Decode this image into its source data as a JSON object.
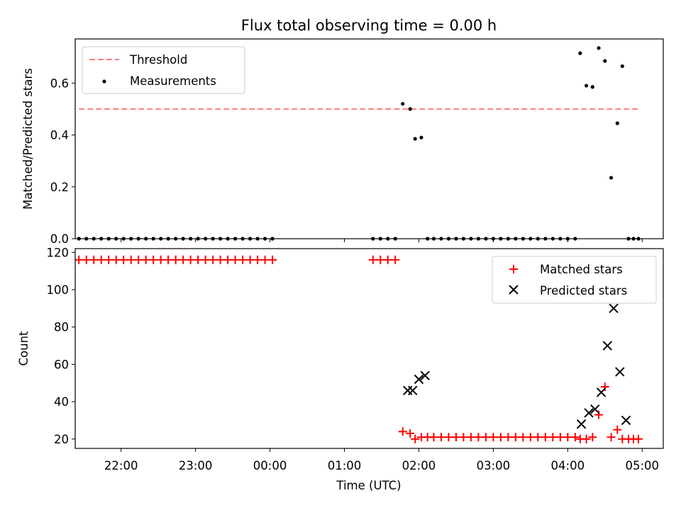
{
  "chart_data": [
    {
      "type": "scatter",
      "title": "Flux total observing time = 0.00 h",
      "ylabel": "Matched/Predicted stars",
      "xlabel": "",
      "ylim": [
        0,
        0.77
      ],
      "yticks": [
        "0.0",
        "0.2",
        "0.4",
        "0.6"
      ],
      "ytick_values": [
        0,
        0.2,
        0.4,
        0.6
      ],
      "legend_position": "top-left",
      "threshold": {
        "name": "Threshold",
        "value": 0.5,
        "x_start": "21:26",
        "x_end": "04:57",
        "color": "#ff7f7f"
      },
      "series": [
        {
          "name": "Measurements",
          "color": "#000000",
          "marker": "dot",
          "x": [
            "21:26",
            "21:32",
            "21:38",
            "21:44",
            "21:50",
            "21:56",
            "22:02",
            "22:08",
            "22:14",
            "22:20",
            "22:26",
            "22:32",
            "22:38",
            "22:44",
            "22:50",
            "22:56",
            "23:02",
            "23:08",
            "23:14",
            "23:20",
            "23:26",
            "23:32",
            "23:38",
            "23:44",
            "23:50",
            "23:56",
            "00:02",
            "01:23",
            "01:29",
            "01:35",
            "01:41",
            "01:47",
            "01:53",
            "01:57",
            "02:02",
            "02:07",
            "02:12",
            "02:18",
            "02:24",
            "02:30",
            "02:36",
            "02:42",
            "02:48",
            "02:54",
            "03:00",
            "03:06",
            "03:12",
            "03:18",
            "03:24",
            "03:30",
            "03:36",
            "03:42",
            "03:48",
            "03:54",
            "04:00",
            "04:06",
            "04:10",
            "04:15",
            "04:20",
            "04:25",
            "04:30",
            "04:35",
            "04:40",
            "04:44",
            "04:49",
            "04:53",
            "04:57"
          ],
          "y": [
            0,
            0,
            0,
            0,
            0,
            0,
            0,
            0,
            0,
            0,
            0,
            0,
            0,
            0,
            0,
            0,
            0,
            0,
            0,
            0,
            0,
            0,
            0,
            0,
            0,
            0,
            0,
            0,
            0,
            0,
            0,
            0.52,
            0.5,
            0.385,
            0.39,
            0,
            0,
            0,
            0,
            0,
            0,
            0,
            0,
            0,
            0,
            0,
            0,
            0,
            0,
            0,
            0,
            0,
            0,
            0,
            0,
            0,
            0.715,
            0.59,
            0.585,
            0.735,
            0.685,
            0.235,
            0.445,
            0.665,
            0,
            0,
            0
          ]
        }
      ]
    },
    {
      "type": "scatter",
      "title": "",
      "ylabel": "Count",
      "xlabel": "Time (UTC)",
      "ylim": [
        15,
        122
      ],
      "yticks": [
        "20",
        "40",
        "60",
        "80",
        "100",
        "120"
      ],
      "ytick_values": [
        20,
        40,
        60,
        80,
        100,
        120
      ],
      "xticks": [
        "22:00",
        "23:00",
        "00:00",
        "01:00",
        "02:00",
        "03:00",
        "04:00",
        "05:00"
      ],
      "xlim": [
        "21:23",
        "05:17"
      ],
      "legend_position": "top-right",
      "series": [
        {
          "name": "Matched stars",
          "color": "#ff0000",
          "marker": "plus",
          "x": [
            "21:26",
            "21:32",
            "21:38",
            "21:44",
            "21:50",
            "21:56",
            "22:02",
            "22:08",
            "22:14",
            "22:20",
            "22:26",
            "22:32",
            "22:38",
            "22:44",
            "22:50",
            "22:56",
            "23:02",
            "23:08",
            "23:14",
            "23:20",
            "23:26",
            "23:32",
            "23:38",
            "23:44",
            "23:50",
            "23:56",
            "00:02",
            "01:23",
            "01:29",
            "01:35",
            "01:41",
            "01:47",
            "01:53",
            "01:57",
            "02:02",
            "02:07",
            "02:12",
            "02:18",
            "02:24",
            "02:30",
            "02:36",
            "02:42",
            "02:48",
            "02:54",
            "03:00",
            "03:06",
            "03:12",
            "03:18",
            "03:24",
            "03:30",
            "03:36",
            "03:42",
            "03:48",
            "03:54",
            "04:00",
            "04:06",
            "04:10",
            "04:15",
            "04:20",
            "04:25",
            "04:30",
            "04:35",
            "04:40",
            "04:44",
            "04:49",
            "04:53",
            "04:57"
          ],
          "y": [
            116,
            116,
            116,
            116,
            116,
            116,
            116,
            116,
            116,
            116,
            116,
            116,
            116,
            116,
            116,
            116,
            116,
            116,
            116,
            116,
            116,
            116,
            116,
            116,
            116,
            116,
            116,
            116,
            116,
            116,
            116,
            24,
            23,
            20,
            21,
            21,
            21,
            21,
            21,
            21,
            21,
            21,
            21,
            21,
            21,
            21,
            21,
            21,
            21,
            21,
            21,
            21,
            21,
            21,
            21,
            21,
            20,
            20,
            21,
            33,
            48,
            21,
            25,
            20,
            20,
            20,
            20
          ]
        },
        {
          "name": "Predicted stars",
          "color": "#000000",
          "marker": "x",
          "x": [
            "01:51",
            "01:55",
            "02:00",
            "02:05",
            "04:11",
            "04:17",
            "04:22",
            "04:27",
            "04:32",
            "04:37",
            "04:42",
            "04:47"
          ],
          "y": [
            46,
            46,
            52,
            54,
            28,
            34,
            36,
            45,
            70,
            90,
            56,
            30
          ]
        }
      ]
    }
  ]
}
